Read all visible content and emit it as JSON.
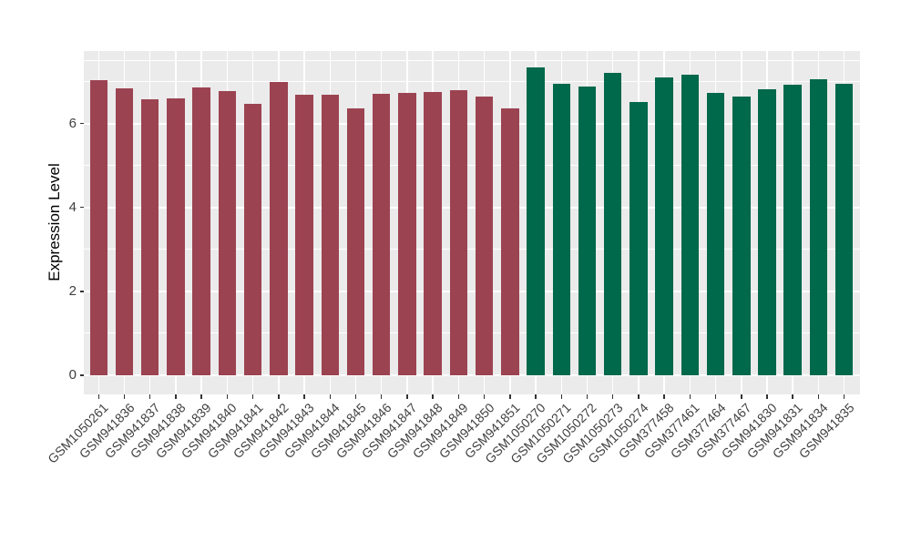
{
  "chart_data": {
    "type": "bar",
    "title": "",
    "ylabel": "Expression Level",
    "xlabel": "",
    "ylim": [
      0,
      7.73
    ],
    "yticks": [
      0,
      2,
      4,
      6
    ],
    "y_minor_gridlines": [
      1,
      3,
      5,
      7,
      7.5
    ],
    "grid": true,
    "legend_position": "none",
    "panel_bg_color": "#EBEBEB",
    "grid_color": "#FFFFFF",
    "tick_mark_color": "#333333",
    "tick_label_color": "#404040",
    "axis_title_color": "#000000",
    "categories": [
      "GSM1050261",
      "GSM941836",
      "GSM941837",
      "GSM941838",
      "GSM941839",
      "GSM941840",
      "GSM941841",
      "GSM941842",
      "GSM941843",
      "GSM941844",
      "GSM941845",
      "GSM941846",
      "GSM941847",
      "GSM941848",
      "GSM941849",
      "GSM941850",
      "GSM941851",
      "GSM1050270",
      "GSM1050271",
      "GSM1050272",
      "GSM1050273",
      "GSM1050274",
      "GSM377458",
      "GSM377461",
      "GSM377464",
      "GSM377467",
      "GSM941830",
      "GSM941831",
      "GSM941834",
      "GSM941835"
    ],
    "values": [
      7.03,
      6.84,
      6.58,
      6.6,
      6.86,
      6.77,
      6.47,
      6.99,
      6.69,
      6.69,
      6.35,
      6.7,
      6.72,
      6.74,
      6.79,
      6.63,
      6.35,
      7.33,
      6.94,
      6.89,
      7.21,
      6.5,
      7.1,
      7.17,
      6.73,
      6.64,
      6.81,
      6.92,
      7.06,
      6.94
    ],
    "bar_groups": [
      "maroon",
      "maroon",
      "maroon",
      "maroon",
      "maroon",
      "maroon",
      "maroon",
      "maroon",
      "maroon",
      "maroon",
      "maroon",
      "maroon",
      "maroon",
      "maroon",
      "maroon",
      "maroon",
      "maroon",
      "green",
      "green",
      "green",
      "green",
      "green",
      "green",
      "green",
      "green",
      "green",
      "green",
      "green",
      "green",
      "green"
    ],
    "group_colors": {
      "maroon": "#9C4352",
      "green": "#00684B"
    }
  }
}
